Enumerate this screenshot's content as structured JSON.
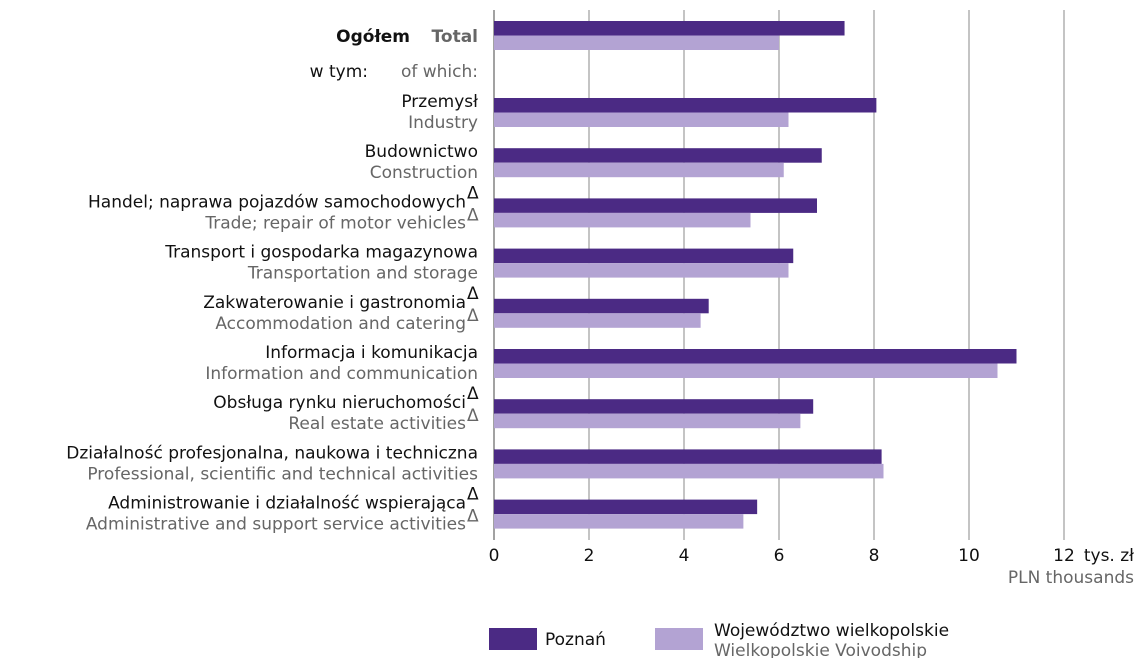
{
  "chart_data": {
    "type": "bar",
    "orientation": "horizontal",
    "categories": [
      "Ogółem",
      "Przemysł",
      "Budownictwo",
      "Handel; naprawa pojazdów samochodowych",
      "Transport i gospodarka magazynowa",
      "Zakwaterowanie i gastronomia",
      "Informacja i komunikacja",
      "Obsługa rynku nieruchomości",
      "Działalność profesjonalna, naukowa i techniczna",
      "Administrowanie i działalność wspierająca"
    ],
    "categories_en": [
      "Total",
      "Industry",
      "Construction",
      "Trade; repair of motor vehicles",
      "Transportation and storage",
      "Accommodation and catering",
      "Information and communication",
      "Real estate activities",
      "Professional, scientific and technical activities",
      "Administrative and support service activities"
    ],
    "footnote_mark": "Δ",
    "marked": [
      false,
      false,
      false,
      true,
      false,
      true,
      false,
      true,
      false,
      true
    ],
    "subgroup_label": "w tym:",
    "subgroup_label_en": "of which:",
    "series": [
      {
        "name": "Poznań",
        "color": "#4b2a84",
        "values": [
          7.38,
          8.05,
          6.9,
          6.8,
          6.3,
          4.52,
          11.0,
          6.72,
          8.16,
          5.54
        ]
      },
      {
        "name": "Województwo wielkopolskie",
        "name_en": "Wielkopolskie Voivodship",
        "color": "#b3a3d3",
        "values": [
          6.0,
          6.2,
          6.1,
          5.4,
          6.2,
          4.35,
          10.6,
          6.45,
          8.2,
          5.25
        ]
      }
    ],
    "xlim": [
      0,
      12
    ],
    "xticks": [
      0,
      2,
      4,
      6,
      8,
      10,
      12
    ],
    "x_unit": "tys. zł",
    "x_unit_en": "PLN thousands",
    "grid": true
  }
}
